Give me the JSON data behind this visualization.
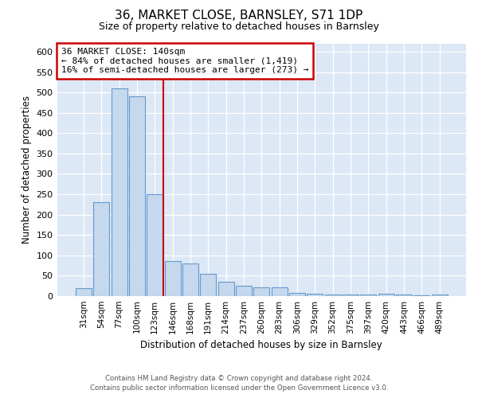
{
  "title": "36, MARKET CLOSE, BARNSLEY, S71 1DP",
  "subtitle": "Size of property relative to detached houses in Barnsley",
  "xlabel": "Distribution of detached houses by size in Barnsley",
  "ylabel": "Number of detached properties",
  "categories": [
    "31sqm",
    "54sqm",
    "77sqm",
    "100sqm",
    "123sqm",
    "146sqm",
    "168sqm",
    "191sqm",
    "214sqm",
    "237sqm",
    "260sqm",
    "283sqm",
    "306sqm",
    "329sqm",
    "352sqm",
    "375sqm",
    "397sqm",
    "420sqm",
    "443sqm",
    "466sqm",
    "489sqm"
  ],
  "values": [
    18,
    230,
    510,
    490,
    250,
    85,
    80,
    55,
    35,
    25,
    20,
    20,
    8,
    6,
    4,
    4,
    3,
    6,
    3,
    2,
    4
  ],
  "bar_color": "#c5d8ee",
  "bar_edge_color": "#6699cc",
  "redline_index": 5,
  "annotation_title": "36 MARKET CLOSE: 140sqm",
  "annotation_line1": "← 84% of detached houses are smaller (1,419)",
  "annotation_line2": "16% of semi-detached houses are larger (273) →",
  "annotation_box_color": "#ffffff",
  "annotation_box_edge": "#cc0000",
  "footer1": "Contains HM Land Registry data © Crown copyright and database right 2024.",
  "footer2": "Contains public sector information licensed under the Open Government Licence v3.0.",
  "background_color": "#dce8f5",
  "ylim": [
    0,
    620
  ],
  "yticks": [
    0,
    50,
    100,
    150,
    200,
    250,
    300,
    350,
    400,
    450,
    500,
    550,
    600
  ]
}
